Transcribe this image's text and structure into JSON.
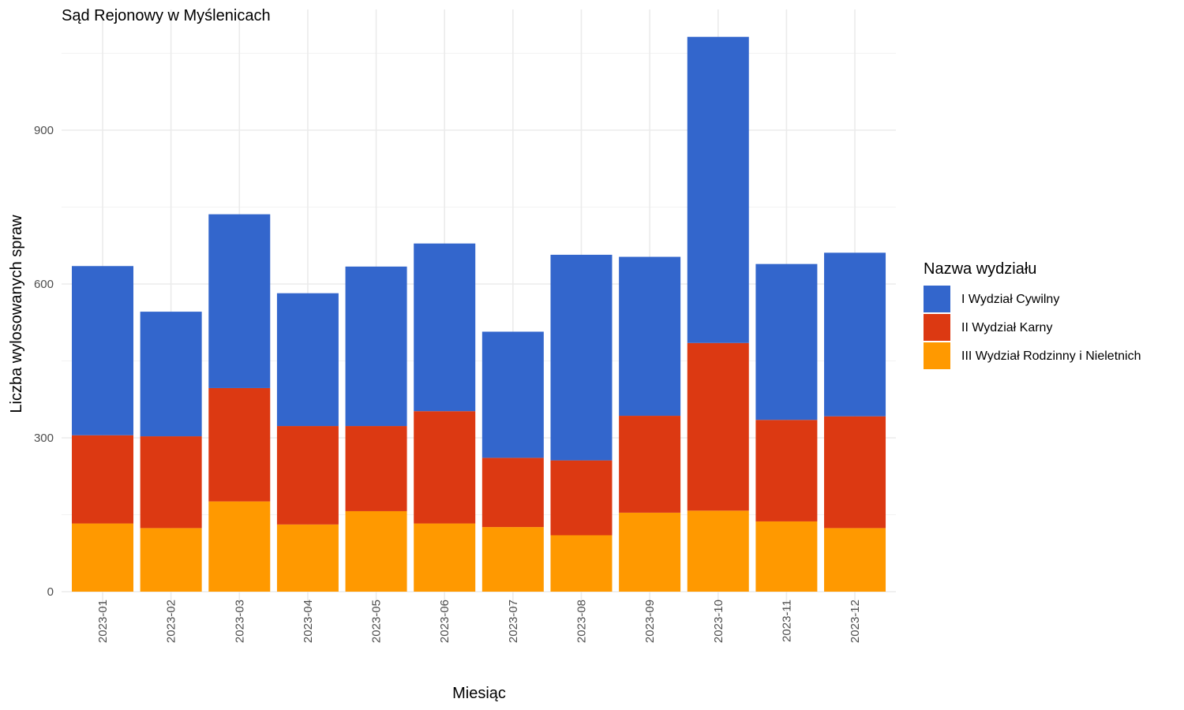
{
  "chart_data": {
    "type": "bar",
    "stacked": true,
    "title": "Sąd Rejonowy w Myślenicach",
    "xlabel": "Miesiąc",
    "ylabel": "Liczba wylosowanych spraw",
    "ylim": [
      0,
      1100
    ],
    "yticks": [
      0,
      300,
      600,
      900
    ],
    "grid": true,
    "legend_title": "Nazwa wydziału",
    "legend_position": "right",
    "categories": [
      "2023-01",
      "2023-02",
      "2023-03",
      "2023-04",
      "2023-05",
      "2023-06",
      "2023-07",
      "2023-08",
      "2023-09",
      "2023-10",
      "2023-11",
      "2023-12"
    ],
    "series": [
      {
        "name": "III Wydział Rodzinny i Nieletnich",
        "color": "#FF9900",
        "values": [
          133,
          124,
          176,
          131,
          157,
          133,
          126,
          110,
          154,
          158,
          137,
          124
        ]
      },
      {
        "name": "II Wydział Karny",
        "color": "#DC3912",
        "values": [
          172,
          179,
          221,
          192,
          166,
          219,
          135,
          146,
          189,
          327,
          198,
          218
        ]
      },
      {
        "name": "I Wydział Cywilny",
        "color": "#3366CC",
        "values": [
          330,
          243,
          339,
          259,
          311,
          327,
          246,
          401,
          310,
          597,
          304,
          319
        ]
      }
    ],
    "legend_order": [
      "I Wydział Cywilny",
      "II Wydział Karny",
      "III Wydział Rodzinny i Nieletnich"
    ]
  }
}
